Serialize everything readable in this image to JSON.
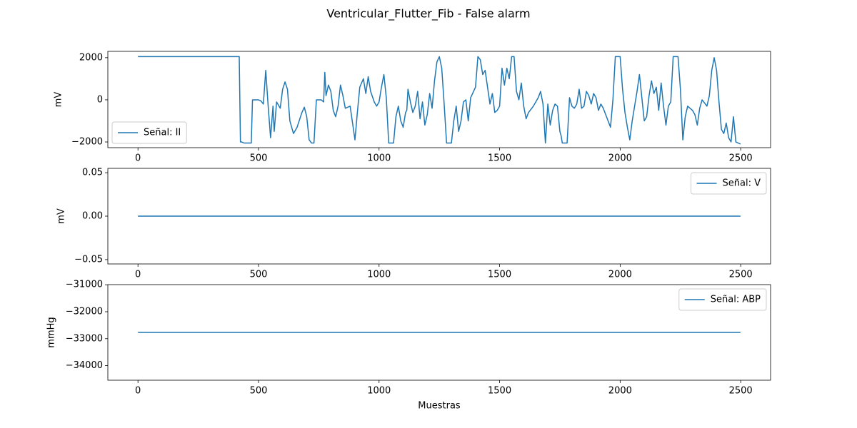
{
  "title": "Ventricular_Flutter_Fib - False alarm",
  "chart_data": [
    {
      "type": "line",
      "ylabel": "mV",
      "x": [
        0,
        420,
        425,
        430,
        440,
        470,
        475,
        500,
        510,
        520,
        530,
        540,
        550,
        560,
        565,
        575,
        590,
        600,
        610,
        620,
        630,
        645,
        660,
        680,
        690,
        700,
        710,
        720,
        730,
        740,
        760,
        770,
        775,
        780,
        790,
        800,
        810,
        820,
        830,
        840,
        850,
        860,
        880,
        890,
        900,
        910,
        920,
        935,
        945,
        955,
        965,
        980,
        990,
        1000,
        1010,
        1020,
        1030,
        1040,
        1060,
        1070,
        1080,
        1090,
        1100,
        1110,
        1115,
        1120,
        1130,
        1140,
        1150,
        1160,
        1170,
        1180,
        1190,
        1200,
        1210,
        1220,
        1230,
        1240,
        1250,
        1260,
        1270,
        1280,
        1300,
        1310,
        1320,
        1330,
        1340,
        1350,
        1360,
        1370,
        1380,
        1400,
        1410,
        1420,
        1430,
        1440,
        1450,
        1460,
        1470,
        1480,
        1490,
        1500,
        1510,
        1520,
        1530,
        1540,
        1550,
        1560,
        1570,
        1580,
        1590,
        1600,
        1610,
        1620,
        1640,
        1660,
        1670,
        1680,
        1690,
        1700,
        1710,
        1720,
        1730,
        1740,
        1750,
        1755,
        1760,
        1780,
        1790,
        1800,
        1810,
        1820,
        1830,
        1840,
        1850,
        1860,
        1870,
        1880,
        1890,
        1900,
        1910,
        1920,
        1930,
        1940,
        1950,
        1960,
        1970,
        1980,
        2000,
        2010,
        2020,
        2030,
        2040,
        2050,
        2060,
        2070,
        2080,
        2090,
        2100,
        2110,
        2120,
        2130,
        2140,
        2150,
        2160,
        2170,
        2180,
        2190,
        2200,
        2210,
        2220,
        2240,
        2250,
        2260,
        2270,
        2280,
        2290,
        2300,
        2310,
        2320,
        2330,
        2340,
        2360,
        2370,
        2380,
        2390,
        2400,
        2410,
        2420,
        2430,
        2440,
        2450,
        2460,
        2470,
        2480,
        2490,
        2499
      ],
      "series": [
        {
          "name": "Señal: II",
          "color": "#1f77b4",
          "values": [
            2050,
            2050,
            -2000,
            -2000,
            -2050,
            -2050,
            0,
            0,
            -50,
            -200,
            1400,
            -300,
            -1800,
            -300,
            -1500,
            -100,
            -400,
            500,
            850,
            500,
            -1000,
            -1600,
            -1300,
            -600,
            -350,
            -800,
            -1900,
            -2050,
            -2050,
            0,
            0,
            -100,
            1300,
            200,
            700,
            400,
            -500,
            -800,
            -300,
            700,
            200,
            -400,
            -300,
            -1100,
            -1900,
            -600,
            600,
            1000,
            300,
            1100,
            400,
            -100,
            -300,
            -100,
            600,
            1200,
            100,
            -2050,
            -2050,
            -800,
            -300,
            -1000,
            -1300,
            -600,
            -500,
            500,
            -100,
            -600,
            -300,
            400,
            -900,
            -100,
            -1200,
            -700,
            300,
            -400,
            900,
            1800,
            2050,
            1500,
            -200,
            -2050,
            -2050,
            -1000,
            -300,
            -1500,
            -1000,
            -100,
            0,
            -1000,
            100,
            600,
            2050,
            1900,
            1200,
            1400,
            600,
            -200,
            300,
            -600,
            -500,
            -300,
            1500,
            700,
            1500,
            1000,
            2050,
            2050,
            400,
            0,
            800,
            -300,
            -900,
            -600,
            -300,
            100,
            400,
            -200,
            -2050,
            -200,
            -1200,
            -500,
            -200,
            -300,
            -1500,
            -1700,
            -2050,
            -2050,
            100,
            -300,
            -400,
            -200,
            500,
            -400,
            -300,
            400,
            200,
            -200,
            300,
            100,
            -500,
            -200,
            -400,
            -700,
            -1000,
            -1300,
            0,
            2050,
            2050,
            500,
            -600,
            -1300,
            -1900,
            -1000,
            -300,
            400,
            1200,
            100,
            -1000,
            -800,
            200,
            900,
            300,
            600,
            -500,
            800,
            -300,
            -1200,
            -300,
            -100,
            2050,
            2050,
            500,
            -1900,
            -800,
            -300,
            -400,
            -500,
            -700,
            -1200,
            -400,
            0,
            -300,
            200,
            1400,
            2000,
            1400,
            -100,
            -1400,
            -1600,
            -1100,
            -1800,
            -2000,
            -800,
            -2000,
            -2050,
            -2100
          ]
        }
      ],
      "xlim": [
        -125,
        2624
      ],
      "xticks": [
        0,
        500,
        1000,
        1500,
        2000,
        2500
      ],
      "ylim": [
        -2270,
        2300
      ],
      "yticks": [
        {
          "value": -2000,
          "label": "−2000"
        },
        0,
        2000
      ],
      "legend": "lower left"
    },
    {
      "type": "line",
      "ylabel": "mV",
      "x": [
        0,
        2499
      ],
      "series": [
        {
          "name": "Señal: V",
          "color": "#1f77b4",
          "values": [
            0,
            0
          ]
        }
      ],
      "xlim": [
        -125,
        2624
      ],
      "xticks": [
        0,
        500,
        1000,
        1500,
        2000,
        2500
      ],
      "ylim": [
        -0.055,
        0.055
      ],
      "yticks": [
        {
          "value": -0.05,
          "label": "−0.05"
        },
        {
          "value": 0,
          "label": "0.00"
        },
        0.05
      ],
      "legend": "upper right"
    },
    {
      "type": "line",
      "ylabel": "mmHg",
      "xlabel": "Muestras",
      "x": [
        0,
        2499
      ],
      "series": [
        {
          "name": "Señal: ABP",
          "color": "#1f77b4",
          "values": [
            -32768,
            -32768
          ]
        }
      ],
      "xlim": [
        -125,
        2624
      ],
      "xticks": [
        0,
        500,
        1000,
        1500,
        2000,
        2500
      ],
      "ylim": [
        -34540,
        -30995
      ],
      "yticks": [
        {
          "value": -34000,
          "label": "−34000"
        },
        {
          "value": -33000,
          "label": "−33000"
        },
        {
          "value": -32000,
          "label": "−32000"
        },
        {
          "value": -31000,
          "label": "−31000"
        }
      ],
      "legend": "upper right"
    }
  ]
}
